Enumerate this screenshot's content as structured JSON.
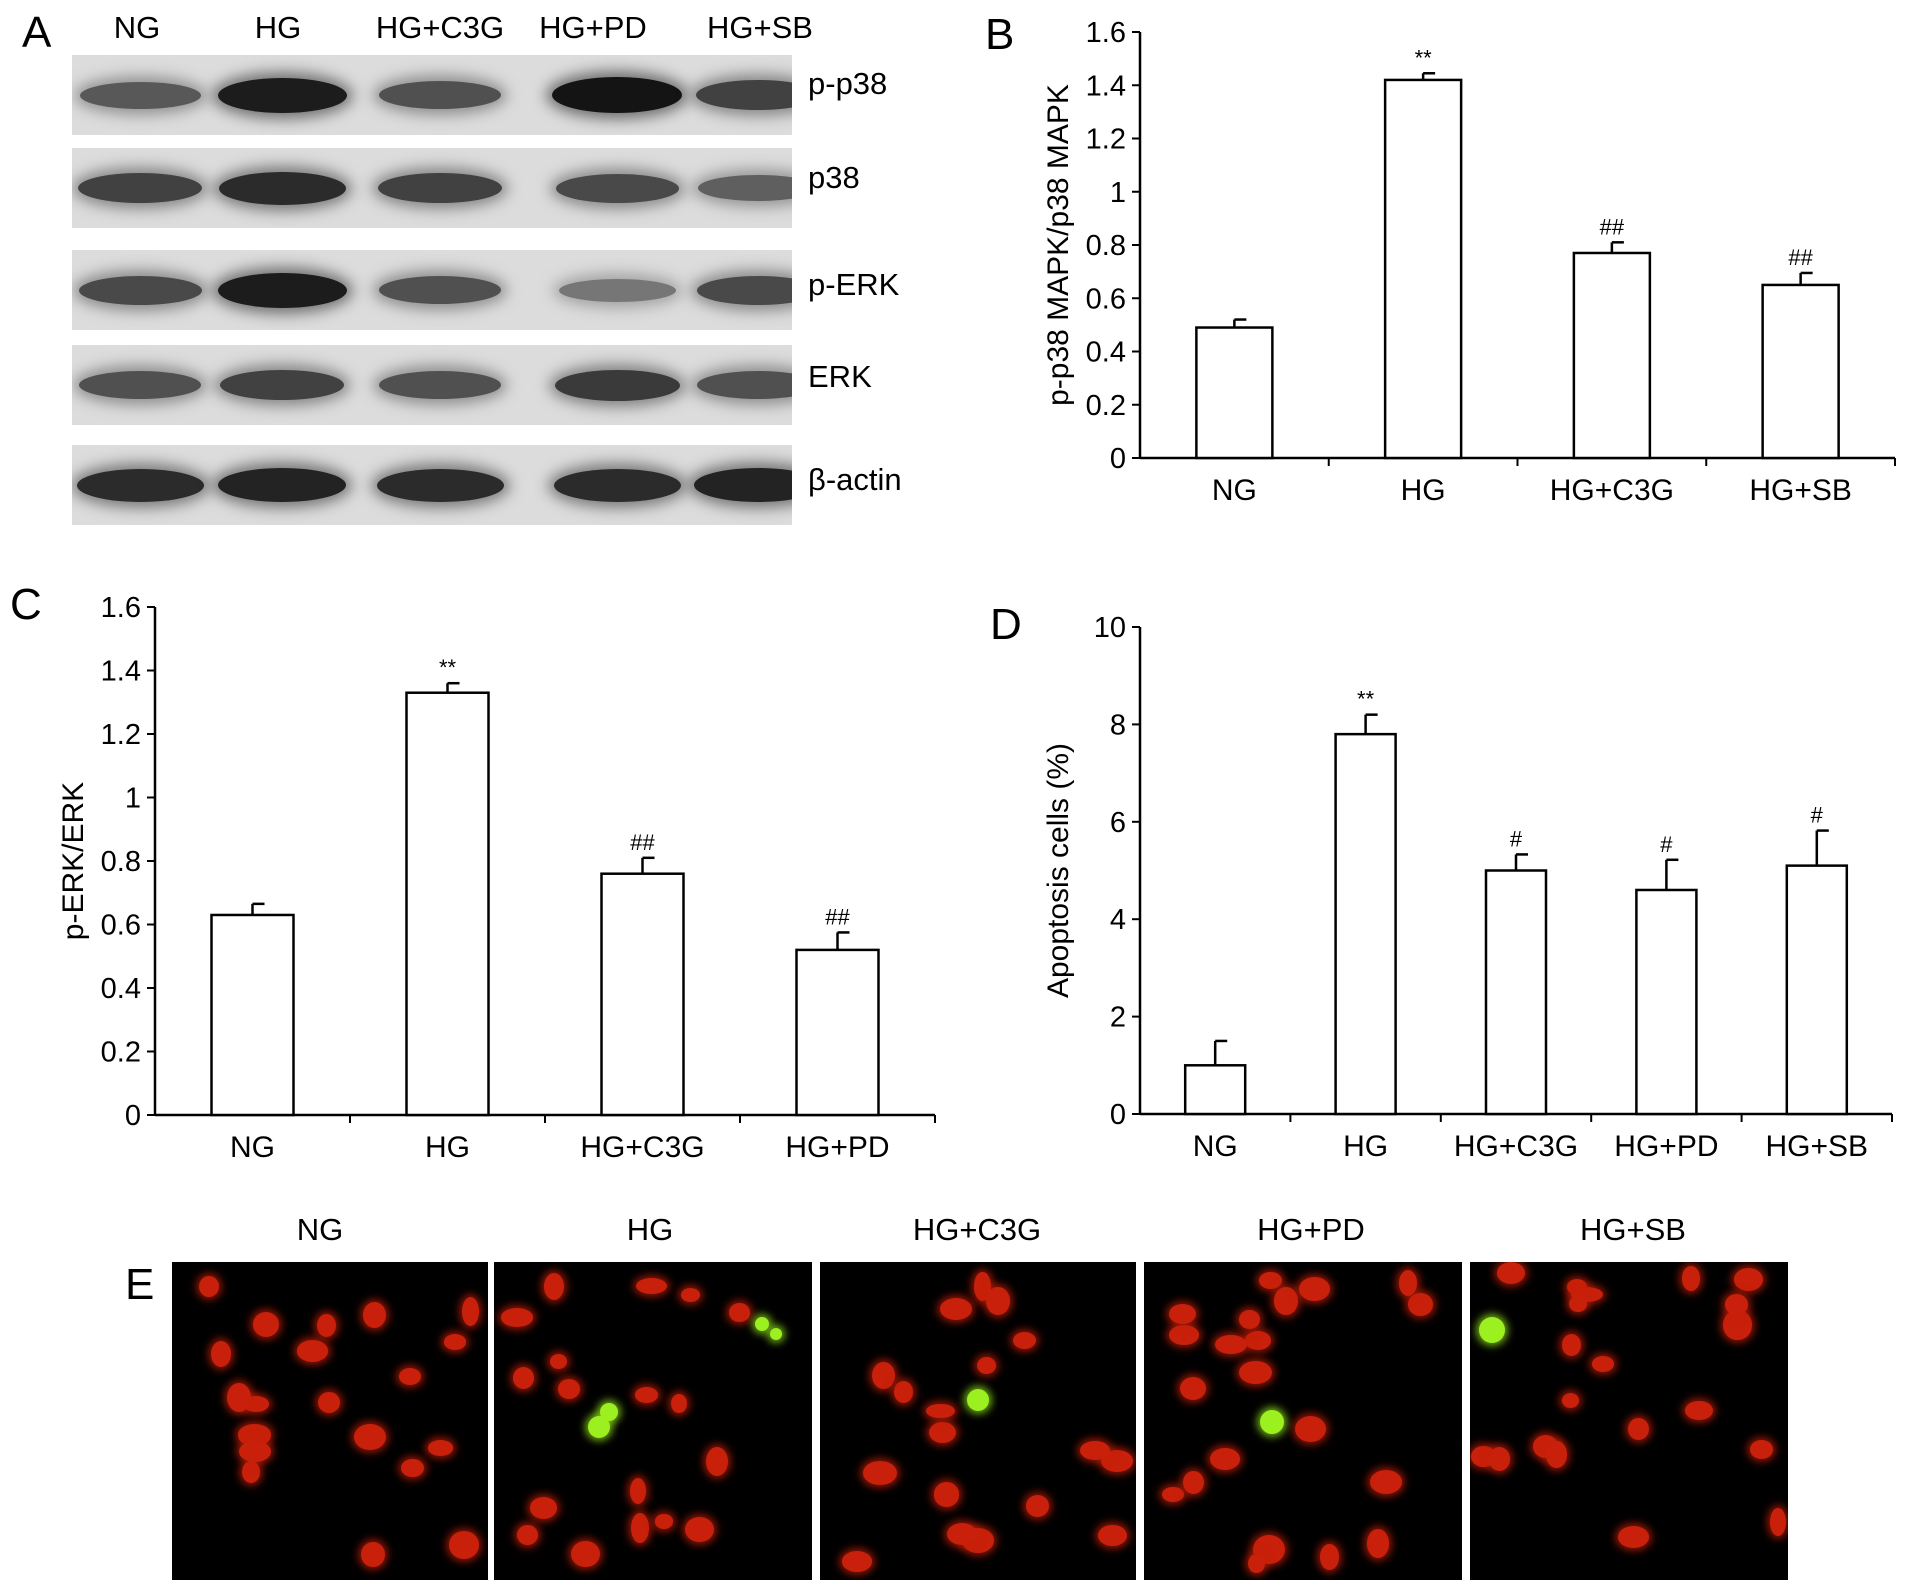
{
  "panel_letters": {
    "a": "A",
    "b": "B",
    "c": "C",
    "d": "D",
    "e": "E"
  },
  "western_blot": {
    "lanes": [
      "NG",
      "HG",
      "HG+C3G",
      "HG+PD",
      "HG+SB"
    ],
    "rows": [
      {
        "label": "p-p38",
        "intensity": [
          0.55,
          0.95,
          0.6,
          1.0,
          0.7
        ]
      },
      {
        "label": "p38",
        "intensity": [
          0.7,
          0.85,
          0.7,
          0.65,
          0.5
        ]
      },
      {
        "label": "p-ERK",
        "intensity": [
          0.65,
          0.95,
          0.6,
          0.35,
          0.65
        ]
      },
      {
        "label": "ERK",
        "intensity": [
          0.6,
          0.7,
          0.6,
          0.75,
          0.6
        ]
      },
      {
        "label": "β-actin",
        "intensity": [
          0.85,
          0.9,
          0.85,
          0.85,
          0.9
        ]
      }
    ]
  },
  "chart_data": [
    {
      "type": "bar",
      "panel": "B",
      "categories": [
        "NG",
        "HG",
        "HG+C3G",
        "HG+SB"
      ],
      "values": [
        0.49,
        1.42,
        0.77,
        0.65
      ],
      "errors": [
        0.03,
        0.025,
        0.04,
        0.045
      ],
      "annotations": [
        "",
        "**",
        "##",
        "##"
      ],
      "ylabel": "p-p38 MAPK/p38 MAPK",
      "xlabel": "",
      "ylim": [
        0,
        1.6
      ],
      "yticks": [
        0,
        0.2,
        0.4,
        0.6,
        0.8,
        1,
        1.2,
        1.4,
        1.6
      ],
      "ytick_labels": [
        "0",
        "0.2",
        "0.4",
        "0.6",
        "0.8",
        "1",
        "1.2",
        "1.4",
        "1.6"
      ],
      "grid": false
    },
    {
      "type": "bar",
      "panel": "C",
      "categories": [
        "NG",
        "HG",
        "HG+C3G",
        "HG+PD"
      ],
      "values": [
        0.63,
        1.33,
        0.76,
        0.52
      ],
      "errors": [
        0.035,
        0.03,
        0.05,
        0.055
      ],
      "annotations": [
        "",
        "**",
        "##",
        "##"
      ],
      "ylabel": "p-ERK/ERK",
      "xlabel": "",
      "ylim": [
        0,
        1.6
      ],
      "yticks": [
        0,
        0.2,
        0.4,
        0.6,
        0.8,
        1,
        1.2,
        1.4,
        1.6
      ],
      "ytick_labels": [
        "0",
        "0.2",
        "0.4",
        "0.6",
        "0.8",
        "1",
        "1.2",
        "1.4",
        "1.6"
      ],
      "grid": false
    },
    {
      "type": "bar",
      "panel": "D",
      "categories": [
        "NG",
        "HG",
        "HG+C3G",
        "HG+PD",
        "HG+SB"
      ],
      "values": [
        1.0,
        7.8,
        5.0,
        4.6,
        5.1
      ],
      "errors": [
        0.5,
        0.4,
        0.33,
        0.62,
        0.72
      ],
      "annotations": [
        "",
        "**",
        "#",
        "#",
        "#"
      ],
      "ylabel": "Apoptosis cells (%)",
      "xlabel": "",
      "ylim": [
        0,
        10
      ],
      "yticks": [
        0,
        2,
        4,
        6,
        8,
        10
      ],
      "ytick_labels": [
        "0",
        "2",
        "4",
        "6",
        "8",
        "10"
      ],
      "grid": false
    }
  ],
  "microscopy": {
    "labels": [
      "NG",
      "HG",
      "HG+C3G",
      "HG+PD",
      "HG+SB"
    ],
    "colors": {
      "background": "#000000",
      "nucleus_red": "#c8200a",
      "apoptotic_green": "#9cf020"
    }
  }
}
